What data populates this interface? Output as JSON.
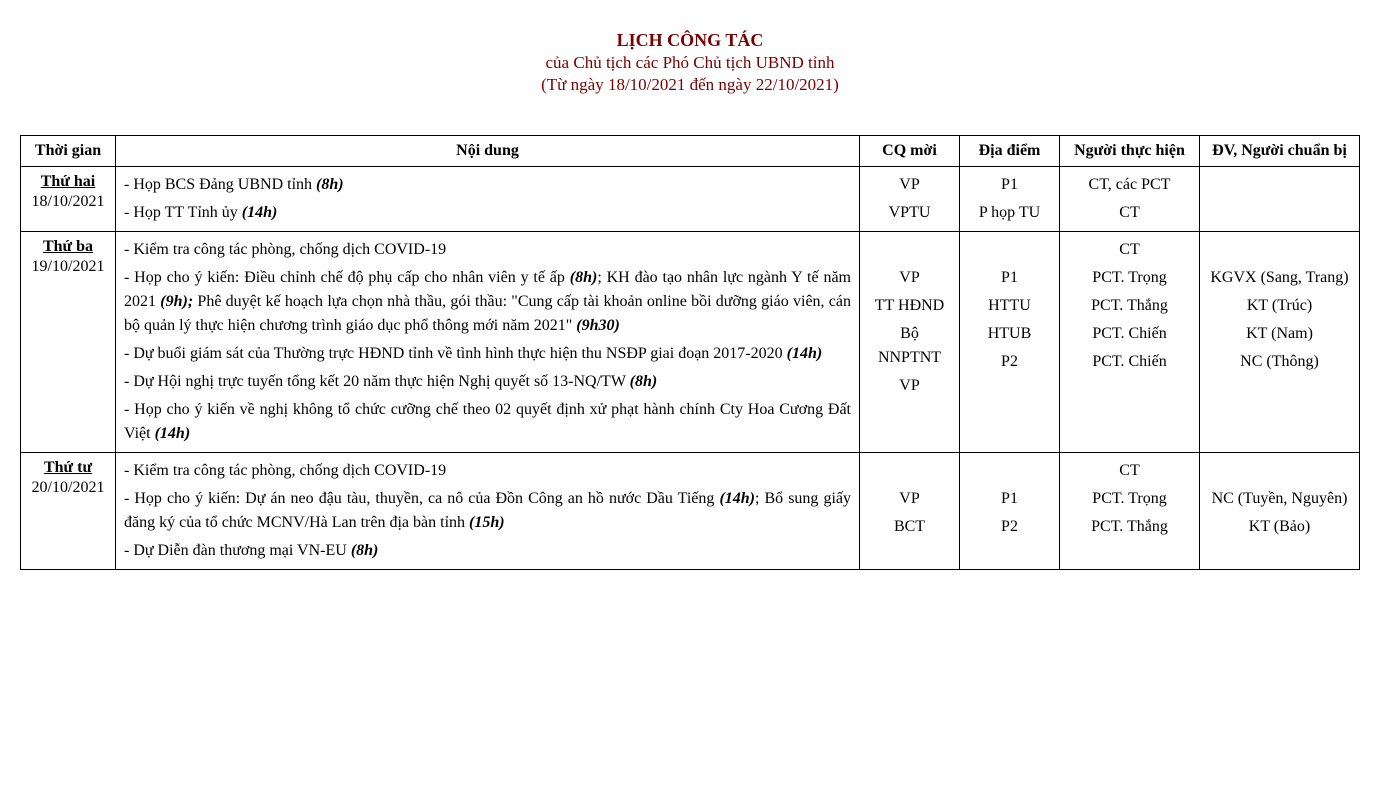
{
  "header": {
    "main": "LỊCH  CÔNG TÁC",
    "sub": "của Chủ tịch các Phó Chủ tịch UBND tỉnh",
    "dates": "(Từ ngày 18/10/2021 đến ngày 22/10/2021)"
  },
  "columns": {
    "time": "Thời gian",
    "content": "Nội dung",
    "agency": "CQ mời",
    "place": "Địa điểm",
    "person": "Người thực hiện",
    "prep": "ĐV, Người chuẩn bị"
  },
  "rows": [
    {
      "day": "Thứ hai",
      "date": "18/10/2021",
      "items": [
        {
          "content_pre": "- Họp BCS Đảng UBND tỉnh ",
          "time": "(8h)",
          "content_post": "",
          "agency": "VP",
          "place": "P1",
          "person": "CT, các PCT",
          "prep": ""
        },
        {
          "content_pre": "- Họp TT Tỉnh ủy ",
          "time": "(14h)",
          "content_post": "",
          "agency": "VPTU",
          "place": "P họp TU",
          "person": "CT",
          "prep": ""
        }
      ]
    },
    {
      "day": "Thứ ba",
      "date": "19/10/2021",
      "items": [
        {
          "content_pre": "- Kiểm tra công tác phòng, chống dịch COVID-19",
          "time": "",
          "content_post": "",
          "agency": "",
          "place": "",
          "person": "CT",
          "prep": ""
        },
        {
          "segments": [
            {
              "pre": "- Họp cho ý kiến: Điều chỉnh chế độ phụ cấp cho nhân viên y tế ấp ",
              "time": "(8h)",
              "post": "; KH đào tạo nhân lực ngành Y tế năm 2021 "
            },
            {
              "pre": "",
              "time": "(9h);",
              "post": " Phê duyệt kế hoạch lựa chọn nhà thầu, gói thầu: \"Cung cấp tài khoản online bồi dưỡng giáo viên, cán bộ quản lý thực hiện chương trình giáo dục phổ thông mới năm 2021\"  "
            },
            {
              "pre": "",
              "time": "(9h30)",
              "post": ""
            }
          ],
          "agency": "VP",
          "place": "P1",
          "person": "PCT. Trọng",
          "prep": "KGVX (Sang, Trang)"
        },
        {
          "content_pre": "- Dự buổi giám sát của Thường trực HĐND tỉnh về tình hình thực hiện thu NSĐP giai đoạn 2017-2020 ",
          "time": "(14h)",
          "content_post": "",
          "agency": "TT HĐND",
          "place": "HTTU",
          "person": "PCT. Thắng",
          "prep": "KT (Trúc)"
        },
        {
          "content_pre": "- Dự Hội nghị trực tuyến tổng kết 20 năm thực hiện Nghị quyết số 13-NQ/TW ",
          "time": "(8h)",
          "content_post": "",
          "agency": "Bộ NNPTNT",
          "place": "HTUB",
          "person": "PCT. Chiến",
          "prep": "KT (Nam)"
        },
        {
          "content_pre": "- Họp cho ý kiến về nghị không tổ chức cưỡng chế theo 02 quyết định xử phạt hành chính Cty Hoa Cương Đất Việt ",
          "time": "(14h)",
          "content_post": "",
          "agency": "VP",
          "place": "P2",
          "person": "PCT. Chiến",
          "prep": "NC (Thông)"
        }
      ]
    },
    {
      "day": "Thứ tư",
      "date": "20/10/2021",
      "items": [
        {
          "content_pre": "- Kiểm tra công tác phòng, chống dịch COVID-19",
          "time": "",
          "content_post": "",
          "agency": "",
          "place": "",
          "person": "CT",
          "prep": ""
        },
        {
          "segments": [
            {
              "pre": "- Họp cho ý kiến: Dự án neo đậu tàu, thuyền, ca nô của Đồn Công an hồ nước Dầu Tiếng ",
              "time": "(14h)",
              "post": "; Bổ sung giấy đăng ký của tổ chức MCNV/Hà Lan trên địa bàn tỉnh "
            },
            {
              "pre": "",
              "time": "(15h)",
              "post": ""
            }
          ],
          "agency": "VP",
          "place": "P1",
          "person": "PCT. Trọng",
          "prep": "NC (Tuyền, Nguyên)"
        },
        {
          "content_pre": "- Dự Diễn đàn thương mại VN-EU ",
          "time": "(8h)",
          "content_post": "",
          "agency": "BCT",
          "place": "P2",
          "person": "PCT. Thắng",
          "prep": "KT (Bảo)"
        }
      ]
    }
  ]
}
